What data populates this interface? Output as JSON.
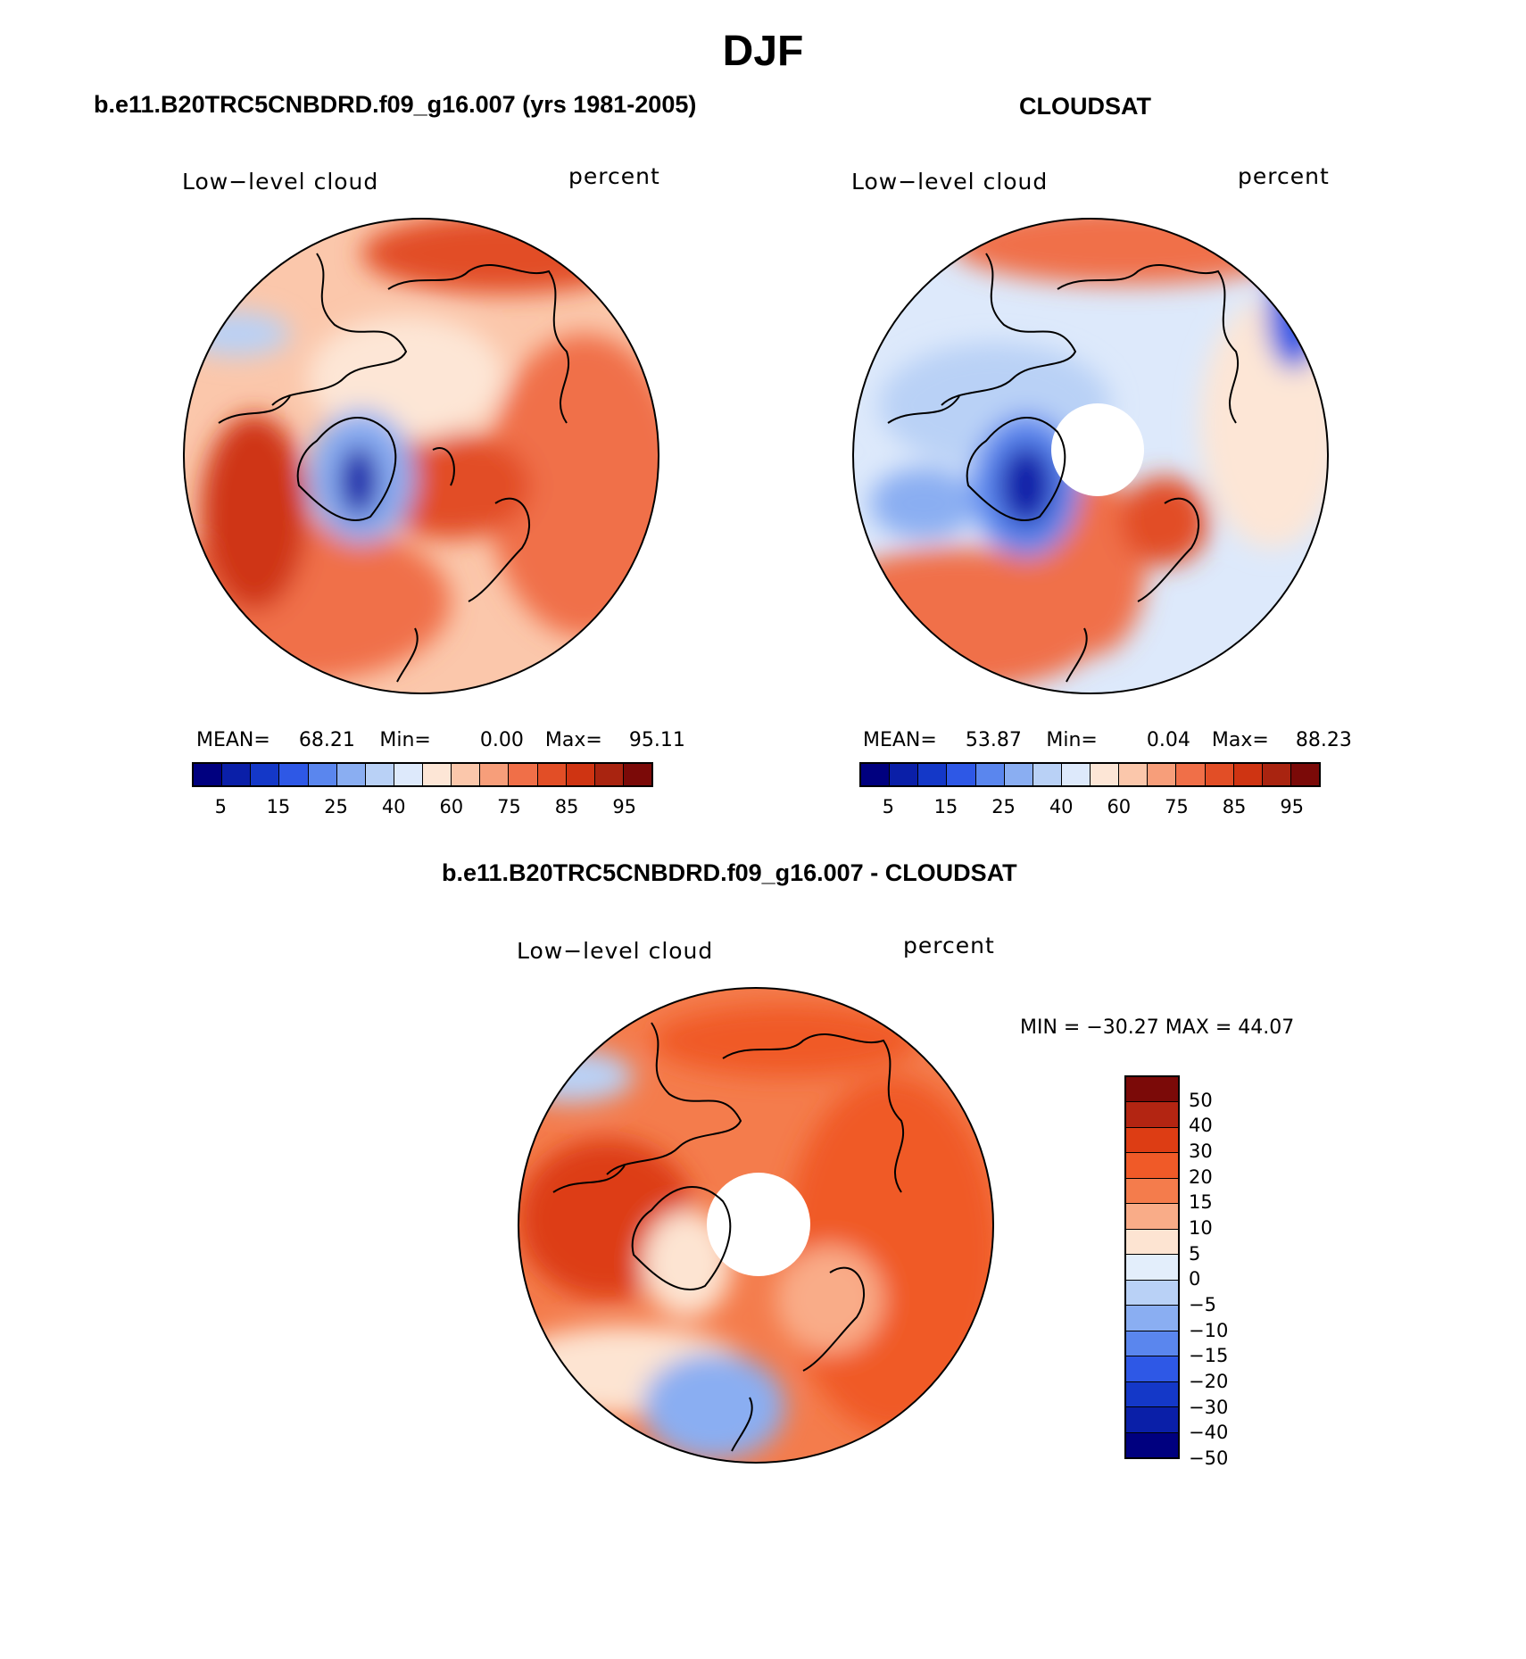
{
  "figure": {
    "title": "DJF"
  },
  "panels": [
    {
      "title": "b.e11.B20TRC5CNBDRD.f09_g16.007 (yrs 1981-2005)",
      "left_label": "Low−level cloud",
      "right_label": "percent",
      "stats": {
        "mean_label": "MEAN=",
        "mean": "68.21",
        "min_label": "Min=",
        "min": "0.00",
        "max_label": "Max=",
        "max": "95.11"
      },
      "colorbar_ticks": [
        "5",
        "15",
        "25",
        "40",
        "60",
        "75",
        "85",
        "95"
      ]
    },
    {
      "title": "CLOUDSAT",
      "left_label": "Low−level cloud",
      "right_label": "percent",
      "stats": {
        "mean_label": "MEAN=",
        "mean": "53.87",
        "min_label": "Min=",
        "min": "0.04",
        "max_label": "Max=",
        "max": "88.23"
      },
      "colorbar_ticks": [
        "5",
        "15",
        "25",
        "40",
        "60",
        "75",
        "85",
        "95"
      ]
    },
    {
      "title": "b.e11.B20TRC5CNBDRD.f09_g16.007 - CLOUDSAT",
      "left_label": "Low−level cloud",
      "right_label": "percent",
      "stats_line": "MIN = −30.27  MAX =   44.07",
      "colorbar_ticks": [
        "50",
        "40",
        "30",
        "20",
        "15",
        "10",
        "5",
        "0",
        "−5",
        "−10",
        "−15",
        "−20",
        "−30",
        "−40",
        "−50"
      ]
    }
  ],
  "colors": {
    "sequential": [
      "#00007f",
      "#0a1fa8",
      "#1438c8",
      "#2e58e6",
      "#5a86ee",
      "#8aaef2",
      "#b9d1f6",
      "#dde9fb",
      "#fde6d6",
      "#fbc7ab",
      "#f79e7a",
      "#f06f48",
      "#e24e26",
      "#cf3412",
      "#a92410",
      "#7b0a08"
    ],
    "diverging": [
      "#7b0a08",
      "#b32512",
      "#dd3d14",
      "#f05a28",
      "#f47c4c",
      "#f9ac88",
      "#fde4d2",
      "#e3eefb",
      "#b9d1f6",
      "#8aaef2",
      "#5a86ee",
      "#2e58e6",
      "#1438c8",
      "#0a1fa8",
      "#00007f"
    ],
    "land_outline": "#000000"
  }
}
